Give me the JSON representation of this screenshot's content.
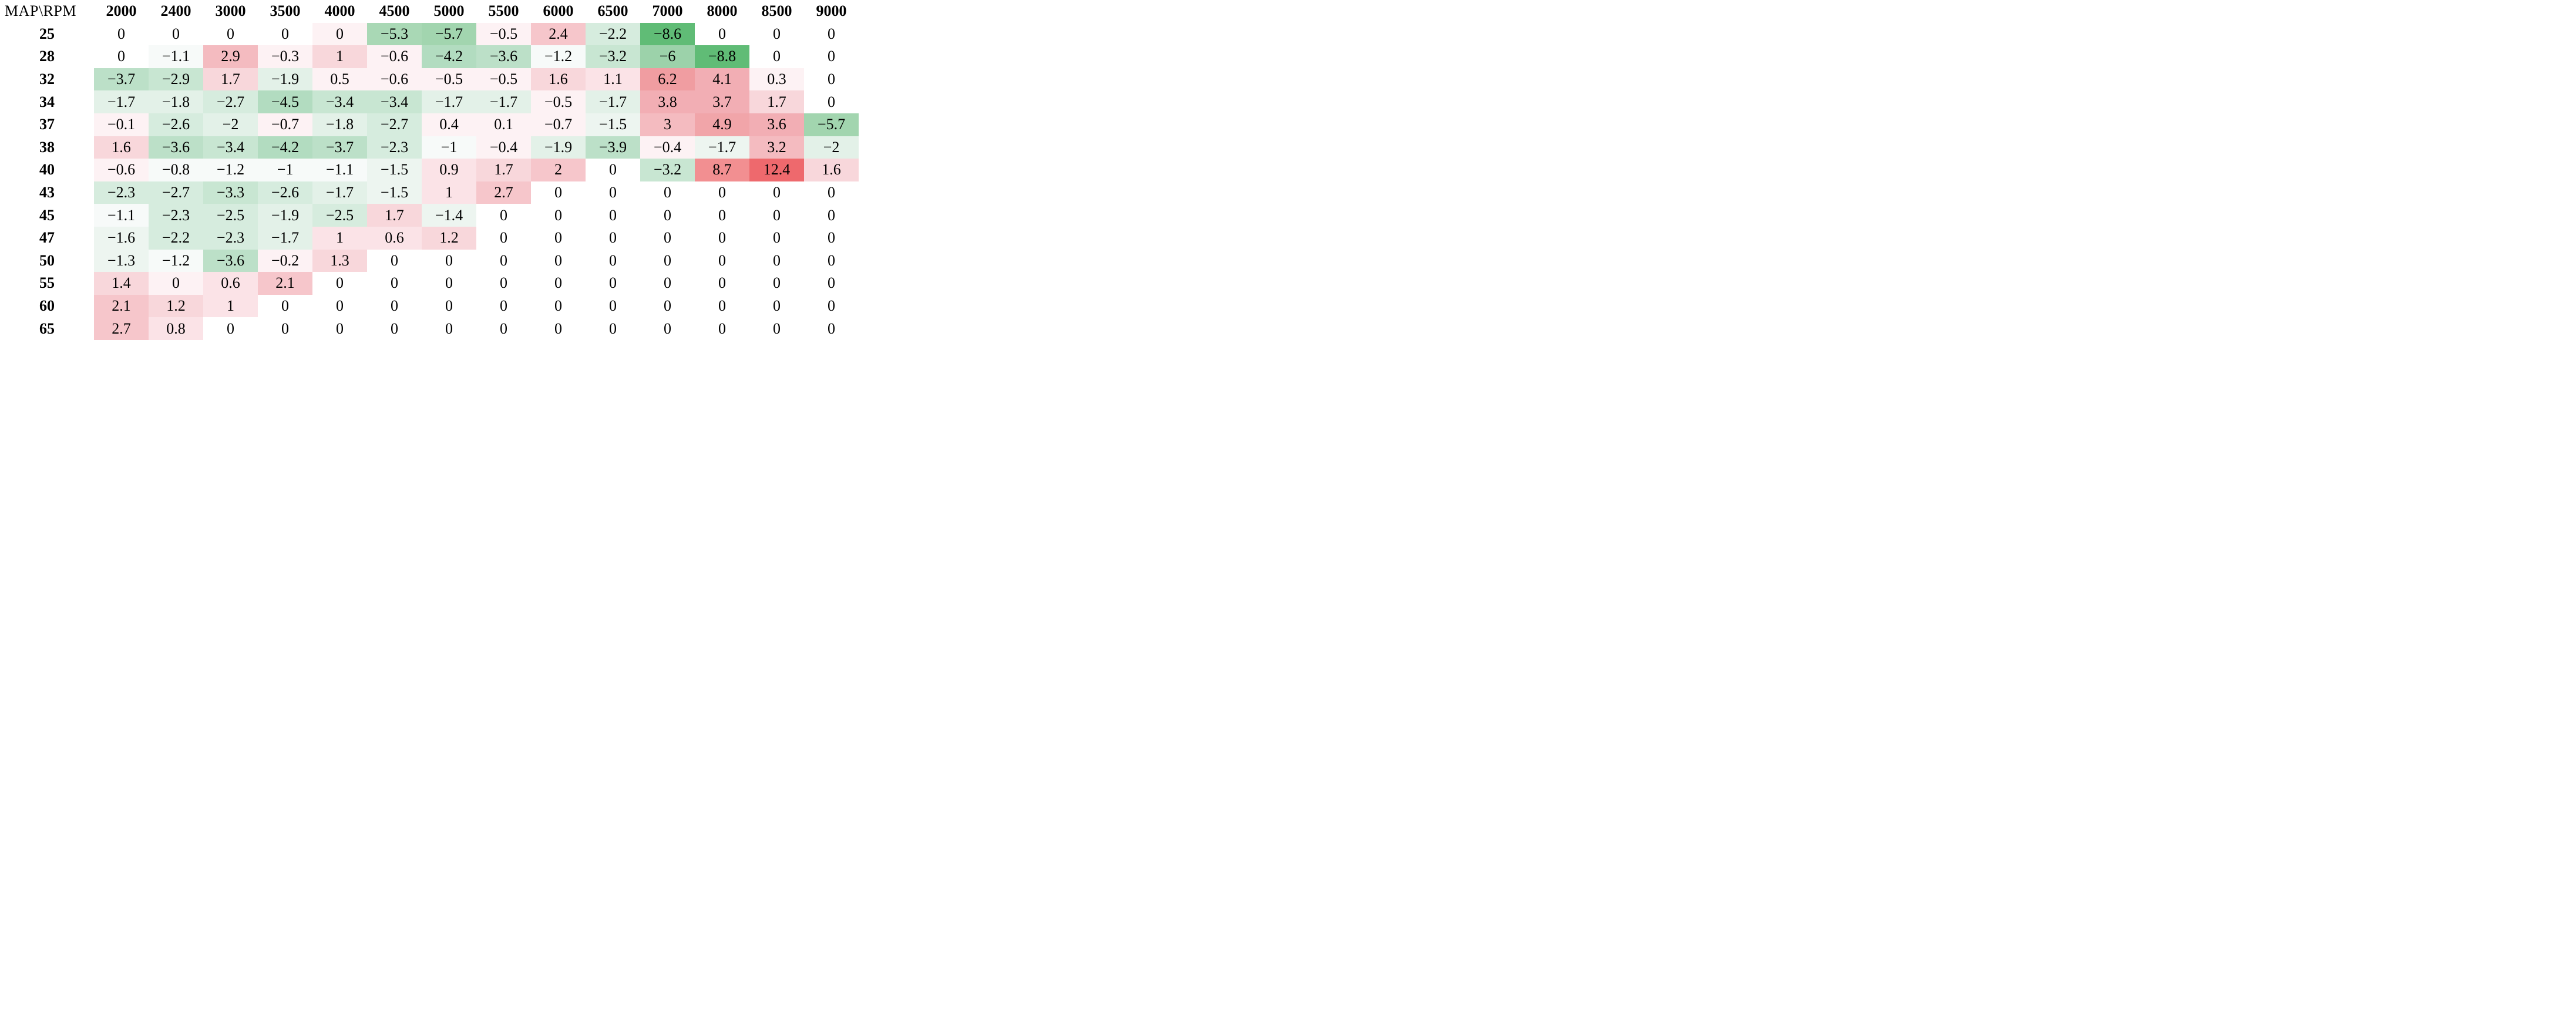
{
  "chart_data": {
    "type": "heatmap",
    "title": "",
    "corner_label": "MAP\\RPM",
    "x_label": "RPM",
    "y_label": "MAP",
    "grid": "off",
    "legend": "none",
    "columns": [
      "2000",
      "2400",
      "3000",
      "3500",
      "4000",
      "4500",
      "5000",
      "5500",
      "6000",
      "6500",
      "7000",
      "8000",
      "8500",
      "9000"
    ],
    "rows": [
      "25",
      "28",
      "32",
      "34",
      "37",
      "38",
      "40",
      "43",
      "45",
      "47",
      "50",
      "55",
      "60",
      "65"
    ],
    "values": [
      [
        0,
        0,
        0,
        0,
        0,
        -5.3,
        -5.7,
        -0.5,
        2.4,
        -2.2,
        -8.6,
        0,
        0,
        0
      ],
      [
        0,
        -1.1,
        2.9,
        -0.3,
        1,
        -0.6,
        -4.2,
        -3.6,
        -1.2,
        -3.2,
        -6,
        -8.8,
        0,
        0
      ],
      [
        -3.7,
        -2.9,
        1.7,
        -1.9,
        0.5,
        -0.6,
        -0.5,
        -0.5,
        1.6,
        1.1,
        6.2,
        4.1,
        0.3,
        0
      ],
      [
        -1.7,
        -1.8,
        -2.7,
        -4.5,
        -3.4,
        -3.4,
        -1.7,
        -1.7,
        -0.5,
        -1.7,
        3.8,
        3.7,
        1.7,
        0
      ],
      [
        -0.1,
        -2.6,
        -2,
        -0.7,
        -1.8,
        -2.7,
        0.4,
        0.1,
        -0.7,
        -1.5,
        3,
        4.9,
        3.6,
        -5.7
      ],
      [
        1.6,
        -3.6,
        -3.4,
        -4.2,
        -3.7,
        -2.3,
        -1,
        -0.4,
        -1.9,
        -3.9,
        -0.4,
        -1.7,
        3.2,
        -2
      ],
      [
        -0.6,
        -0.8,
        -1.2,
        -1,
        -1.1,
        -1.5,
        0.9,
        1.7,
        2,
        0,
        -3.2,
        8.7,
        12.4,
        1.6
      ],
      [
        -2.3,
        -2.7,
        -3.3,
        -2.6,
        -1.7,
        -1.5,
        1,
        2.7,
        0,
        0,
        0,
        0,
        0,
        0
      ],
      [
        -1.1,
        -2.3,
        -2.5,
        -1.9,
        -2.5,
        1.7,
        -1.4,
        0,
        0,
        0,
        0,
        0,
        0,
        0
      ],
      [
        -1.6,
        -2.2,
        -2.3,
        -1.7,
        1,
        0.6,
        1.2,
        0,
        0,
        0,
        0,
        0,
        0,
        0
      ],
      [
        -1.3,
        -1.2,
        -3.6,
        -0.2,
        1.3,
        0,
        0,
        0,
        0,
        0,
        0,
        0,
        0,
        0
      ],
      [
        1.4,
        0,
        0.6,
        2.1,
        0,
        0,
        0,
        0,
        0,
        0,
        0,
        0,
        0,
        0
      ],
      [
        2.1,
        1.2,
        1,
        0,
        0,
        0,
        0,
        0,
        0,
        0,
        0,
        0,
        0,
        0
      ],
      [
        2.7,
        0.8,
        0,
        0,
        0,
        0,
        0,
        0,
        0,
        0,
        0,
        0,
        0,
        0
      ]
    ],
    "cell_tints": [
      [
        "W",
        "W",
        "W",
        "W",
        "P0",
        "G8",
        "G9",
        "P0",
        "P3",
        "G4",
        "G11",
        "W",
        "W",
        "W"
      ],
      [
        "W",
        "G1",
        "P4",
        "P0",
        "P2",
        "P0",
        "G7",
        "G6",
        "G1",
        "G5",
        "G10",
        "G11",
        "W",
        "W"
      ],
      [
        "G6",
        "G5",
        "P2",
        "G3",
        "P0",
        "P0",
        "P0",
        "P0",
        "P2",
        "P1",
        "P7",
        "P5",
        "P0",
        "W"
      ],
      [
        "G3",
        "G3",
        "G4",
        "G7",
        "G5",
        "G5",
        "G3",
        "G3",
        "P0",
        "G3",
        "P5",
        "P5",
        "P2",
        "W"
      ],
      [
        "P0",
        "G4",
        "G3",
        "P0",
        "G3",
        "G4",
        "P0",
        "P0",
        "P0",
        "G2",
        "P4",
        "P6",
        "P5",
        "G9"
      ],
      [
        "P2",
        "G6",
        "G5",
        "G7",
        "G6",
        "G4",
        "G1",
        "P0",
        "G3",
        "G6",
        "P0",
        "G2",
        "P4",
        "G3"
      ],
      [
        "P0",
        "G1",
        "G1",
        "G1",
        "G1",
        "G2",
        "P1",
        "P2",
        "P3",
        "W",
        "G5",
        "P8",
        "P9",
        "P2"
      ],
      [
        "G4",
        "G4",
        "G5",
        "G4",
        "G3",
        "G2",
        "P1",
        "P3",
        "W",
        "W",
        "W",
        "W",
        "W",
        "W"
      ],
      [
        "G1",
        "G4",
        "G4",
        "G3",
        "G4",
        "P2",
        "G2",
        "W",
        "W",
        "W",
        "W",
        "W",
        "W",
        "W"
      ],
      [
        "G2",
        "G4",
        "G4",
        "G3",
        "P1",
        "P1",
        "P2",
        "W",
        "W",
        "W",
        "W",
        "W",
        "W",
        "W"
      ],
      [
        "G2",
        "G1",
        "G6",
        "P0",
        "P2",
        "W",
        "W",
        "W",
        "W",
        "W",
        "W",
        "W",
        "W",
        "W"
      ],
      [
        "P2",
        "P0",
        "P1",
        "P3",
        "W",
        "W",
        "W",
        "W",
        "W",
        "W",
        "W",
        "W",
        "W",
        "W"
      ],
      [
        "P3",
        "P2",
        "P1",
        "W",
        "W",
        "W",
        "W",
        "W",
        "W",
        "W",
        "W",
        "W",
        "W",
        "W"
      ],
      [
        "P3",
        "P1",
        "W",
        "W",
        "W",
        "W",
        "W",
        "W",
        "W",
        "W",
        "W",
        "W",
        "W",
        "W"
      ]
    ],
    "palette": {
      "W": "#ffffff",
      "P0": "#fdf2f4",
      "P1": "#fbe3e7",
      "P2": "#f8d7db",
      "P3": "#f6c6cb",
      "P4": "#f4bbc0",
      "P5": "#f2aeb4",
      "P6": "#f1a5a9",
      "P7": "#f09da1",
      "P8": "#f28f91",
      "P9": "#ee696d",
      "G1": "#f7faf9",
      "G2": "#edf5f0",
      "G3": "#e3f1e8",
      "G4": "#d6ecde",
      "G5": "#c8e6d2",
      "G6": "#bce0c8",
      "G7": "#b2dcc0",
      "G8": "#a9d8b5",
      "G9": "#a2d5af",
      "G10": "#9cd2aa",
      "G11": "#60bc76"
    },
    "colormap_note": {
      "negative_color": "#60bc76",
      "positive_color": "#ee696d",
      "zero_color": "#ffffff"
    },
    "value_range": [
      -8.8,
      12.4
    ]
  }
}
